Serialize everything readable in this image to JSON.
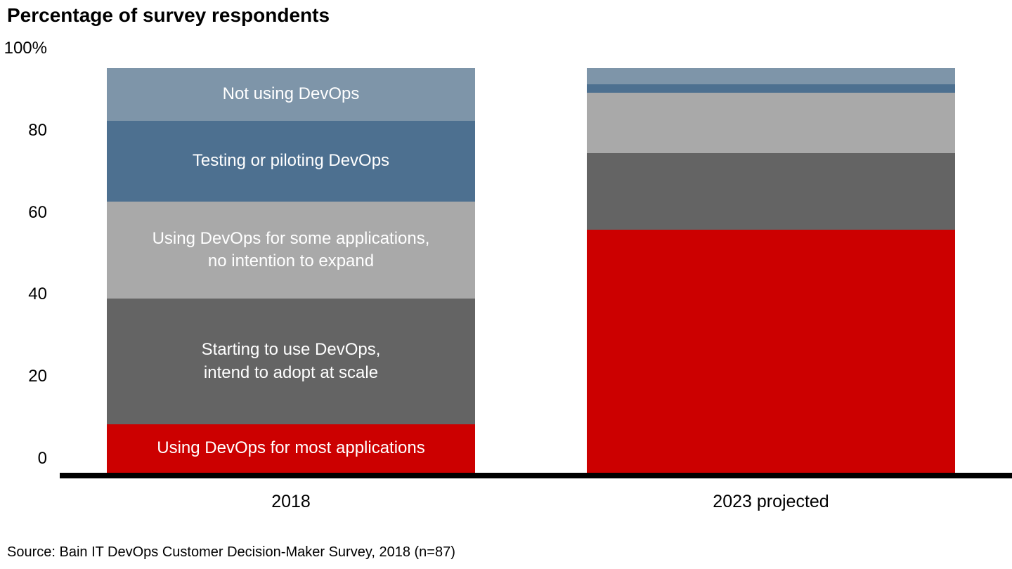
{
  "title": "Percentage of survey respondents",
  "source": "Source: Bain IT DevOps Customer Decision-Maker Survey, 2018 (n=87)",
  "chart_data": {
    "type": "bar",
    "stacked": true,
    "title": "Percentage of survey respondents",
    "categories": [
      "2018",
      "2023 projected"
    ],
    "series": [
      {
        "name": "Using DevOps for most applications",
        "label": "Using DevOps for most applications",
        "color": "#cc0000",
        "values": [
          12,
          60
        ]
      },
      {
        "name": "Starting to use DevOps, intend to adopt at scale",
        "label": "Starting to use DevOps,\nintend to adopt at scale",
        "color": "#646464",
        "values": [
          31,
          19
        ]
      },
      {
        "name": "Using DevOps for some applications, no intention to expand",
        "label": "Using DevOps for some applications,\nno intention to expand",
        "color": "#a9a9a9",
        "values": [
          24,
          15
        ]
      },
      {
        "name": "Testing or piloting DevOps",
        "label": "Testing or piloting DevOps",
        "color": "#4d7090",
        "values": [
          20,
          2
        ]
      },
      {
        "name": "Not using DevOps",
        "label": "Not using DevOps",
        "color": "#7e95a9",
        "values": [
          13,
          4
        ]
      }
    ],
    "segment_labels_shown_on_category": "2018",
    "ylim": [
      0,
      100
    ],
    "yticks": [
      {
        "label": "100%",
        "value": 100
      },
      {
        "label": "80",
        "value": 80
      },
      {
        "label": "60",
        "value": 60
      },
      {
        "label": "40",
        "value": 40
      },
      {
        "label": "20",
        "value": 20
      },
      {
        "label": "0",
        "value": 0
      }
    ],
    "grid": false,
    "legend": false
  }
}
